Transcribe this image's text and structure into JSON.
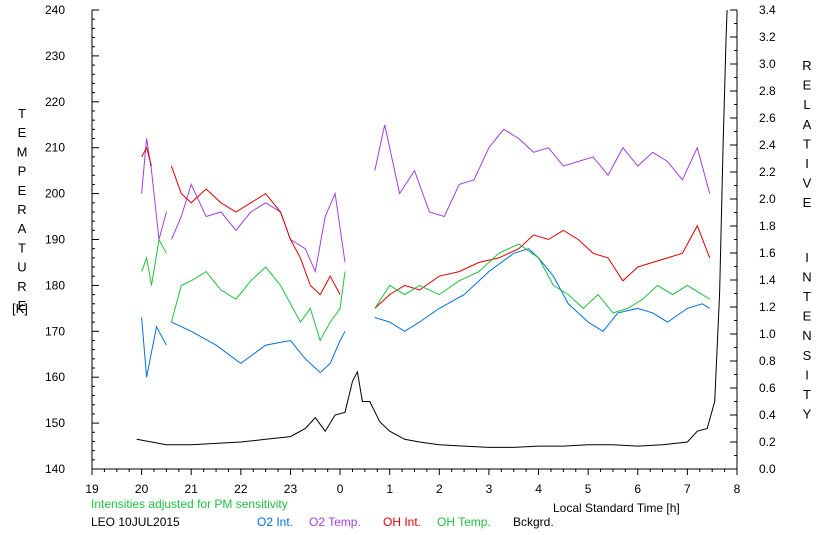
{
  "chart_data": {
    "type": "line",
    "left_axis_title": "TEMPERATURE",
    "left_axis_unit": "[K]",
    "right_axis_title": "RELATIVE INTENSITY",
    "xlabel": "Local Standard Time [h]",
    "note": "Intensities adjusted for PM sensitivity",
    "station_date": "LEO 10JUL2015",
    "x_range": [
      19,
      32
    ],
    "x_ticks": [
      "19",
      "20",
      "21",
      "22",
      "23",
      "0",
      "1",
      "2",
      "3",
      "4",
      "5",
      "6",
      "7",
      "8"
    ],
    "y_left_range": [
      140,
      240
    ],
    "y_left_ticks": [
      "140",
      "150",
      "160",
      "170",
      "180",
      "190",
      "200",
      "210",
      "220",
      "230",
      "240"
    ],
    "y_right_range": [
      0.0,
      3.4
    ],
    "y_right_ticks": [
      "0.0",
      "0.2",
      "0.4",
      "0.6",
      "0.8",
      "1.0",
      "1.2",
      "1.4",
      "1.6",
      "1.8",
      "2.0",
      "2.2",
      "2.4",
      "2.6",
      "2.8",
      "3.0",
      "3.2",
      "3.4"
    ],
    "series": [
      {
        "name": "O2 Int.",
        "color": "#0070e0",
        "axis": "left",
        "segments": [
          [
            [
              20.0,
              173
            ],
            [
              20.1,
              160
            ],
            [
              20.3,
              171
            ],
            [
              20.5,
              167
            ]
          ],
          [
            [
              20.6,
              172
            ],
            [
              21.0,
              170
            ],
            [
              21.5,
              167
            ],
            [
              22.0,
              163
            ],
            [
              22.5,
              167
            ],
            [
              23.0,
              168
            ],
            [
              23.3,
              164
            ],
            [
              23.6,
              161
            ],
            [
              23.8,
              163
            ],
            [
              24.0,
              168
            ],
            [
              24.1,
              170
            ]
          ],
          [
            [
              24.7,
              173
            ],
            [
              25.0,
              172
            ],
            [
              25.3,
              170
            ],
            [
              25.6,
              172
            ],
            [
              26.0,
              175
            ],
            [
              26.5,
              178
            ],
            [
              27.0,
              183
            ],
            [
              27.5,
              187
            ],
            [
              27.8,
              188
            ],
            [
              28.0,
              186
            ],
            [
              28.3,
              182
            ],
            [
              28.6,
              176
            ],
            [
              29.0,
              172
            ],
            [
              29.3,
              170
            ],
            [
              29.6,
              174
            ],
            [
              30.0,
              175
            ],
            [
              30.3,
              174
            ],
            [
              30.6,
              172
            ],
            [
              31.0,
              175
            ],
            [
              31.3,
              176
            ],
            [
              31.45,
              175
            ]
          ]
        ]
      },
      {
        "name": "O2 Temp.",
        "color": "#a040e0",
        "axis": "left",
        "segments": [
          [
            [
              20.0,
              200
            ],
            [
              20.1,
              212
            ],
            [
              20.2,
              205
            ],
            [
              20.35,
              190
            ],
            [
              20.5,
              196
            ]
          ],
          [
            [
              20.6,
              190
            ],
            [
              20.8,
              195
            ],
            [
              21.0,
              202
            ],
            [
              21.3,
              195
            ],
            [
              21.6,
              196
            ],
            [
              21.9,
              192
            ],
            [
              22.2,
              196
            ],
            [
              22.5,
              198
            ],
            [
              22.8,
              196
            ],
            [
              23.0,
              190
            ],
            [
              23.3,
              188
            ],
            [
              23.5,
              183
            ],
            [
              23.7,
              195
            ],
            [
              23.9,
              200
            ],
            [
              24.1,
              185
            ]
          ],
          [
            [
              24.7,
              205
            ],
            [
              24.9,
              215
            ],
            [
              25.2,
              200
            ],
            [
              25.5,
              205
            ],
            [
              25.8,
              196
            ],
            [
              26.1,
              195
            ],
            [
              26.4,
              202
            ],
            [
              26.7,
              203
            ],
            [
              27.0,
              210
            ],
            [
              27.3,
              214
            ],
            [
              27.6,
              212
            ],
            [
              27.9,
              209
            ],
            [
              28.2,
              210
            ],
            [
              28.5,
              206
            ],
            [
              28.8,
              207
            ],
            [
              29.1,
              208
            ],
            [
              29.4,
              204
            ],
            [
              29.7,
              210
            ],
            [
              30.0,
              206
            ],
            [
              30.3,
              209
            ],
            [
              30.6,
              207
            ],
            [
              30.9,
              203
            ],
            [
              31.2,
              210
            ],
            [
              31.45,
              200
            ]
          ]
        ]
      },
      {
        "name": "OH Int.",
        "color": "#e00000",
        "axis": "left",
        "segments": [
          [
            [
              20.0,
              208
            ],
            [
              20.1,
              210
            ],
            [
              20.2,
              206
            ]
          ],
          [
            [
              20.6,
              206
            ],
            [
              20.8,
              200
            ],
            [
              21.0,
              198
            ],
            [
              21.3,
              201
            ],
            [
              21.6,
              198
            ],
            [
              21.9,
              196
            ],
            [
              22.2,
              198
            ],
            [
              22.5,
              200
            ],
            [
              22.8,
              196
            ],
            [
              23.0,
              190
            ],
            [
              23.2,
              186
            ],
            [
              23.4,
              180
            ],
            [
              23.6,
              178
            ],
            [
              23.8,
              182
            ],
            [
              24.0,
              178
            ]
          ],
          [
            [
              24.7,
              175
            ],
            [
              25.0,
              178
            ],
            [
              25.3,
              180
            ],
            [
              25.6,
              179
            ],
            [
              26.0,
              182
            ],
            [
              26.4,
              183
            ],
            [
              26.8,
              185
            ],
            [
              27.2,
              186
            ],
            [
              27.6,
              188
            ],
            [
              27.9,
              191
            ],
            [
              28.2,
              190
            ],
            [
              28.5,
              192
            ],
            [
              28.8,
              190
            ],
            [
              29.1,
              187
            ],
            [
              29.4,
              186
            ],
            [
              29.7,
              181
            ],
            [
              30.0,
              184
            ],
            [
              30.3,
              185
            ],
            [
              30.6,
              186
            ],
            [
              30.9,
              187
            ],
            [
              31.2,
              193
            ],
            [
              31.45,
              186
            ]
          ]
        ]
      },
      {
        "name": "OH Temp.",
        "color": "#20c040",
        "axis": "left",
        "segments": [
          [
            [
              20.0,
              183
            ],
            [
              20.1,
              186
            ],
            [
              20.2,
              180
            ],
            [
              20.35,
              190
            ],
            [
              20.5,
              187
            ]
          ],
          [
            [
              20.6,
              172
            ],
            [
              20.8,
              180
            ],
            [
              21.0,
              181
            ],
            [
              21.3,
              183
            ],
            [
              21.6,
              179
            ],
            [
              21.9,
              177
            ],
            [
              22.2,
              181
            ],
            [
              22.5,
              184
            ],
            [
              22.8,
              180
            ],
            [
              23.0,
              176
            ],
            [
              23.2,
              172
            ],
            [
              23.4,
              175
            ],
            [
              23.6,
              168
            ],
            [
              23.8,
              172
            ],
            [
              24.0,
              175
            ],
            [
              24.1,
              183
            ]
          ],
          [
            [
              24.7,
              175
            ],
            [
              25.0,
              180
            ],
            [
              25.3,
              178
            ],
            [
              25.6,
              180
            ],
            [
              26.0,
              178
            ],
            [
              26.4,
              181
            ],
            [
              26.8,
              183
            ],
            [
              27.2,
              187
            ],
            [
              27.6,
              189
            ],
            [
              28.0,
              186
            ],
            [
              28.3,
              180
            ],
            [
              28.6,
              178
            ],
            [
              28.9,
              175
            ],
            [
              29.2,
              178
            ],
            [
              29.5,
              174
            ],
            [
              29.8,
              175
            ],
            [
              30.1,
              177
            ],
            [
              30.4,
              180
            ],
            [
              30.7,
              178
            ],
            [
              31.0,
              180
            ],
            [
              31.3,
              178
            ],
            [
              31.45,
              177
            ]
          ]
        ]
      },
      {
        "name": "Bckgrd.",
        "color": "#000000",
        "axis": "right",
        "segments": [
          [
            [
              19.9,
              0.22
            ],
            [
              20.5,
              0.18
            ],
            [
              21.0,
              0.18
            ],
            [
              21.5,
              0.19
            ],
            [
              22.0,
              0.2
            ],
            [
              22.5,
              0.22
            ],
            [
              23.0,
              0.24
            ],
            [
              23.3,
              0.3
            ],
            [
              23.5,
              0.38
            ],
            [
              23.7,
              0.28
            ],
            [
              23.9,
              0.4
            ],
            [
              24.1,
              0.42
            ],
            [
              24.25,
              0.65
            ],
            [
              24.35,
              0.72
            ],
            [
              24.45,
              0.5
            ],
            [
              24.6,
              0.5
            ],
            [
              24.8,
              0.35
            ],
            [
              25.0,
              0.28
            ],
            [
              25.3,
              0.22
            ],
            [
              25.6,
              0.2
            ],
            [
              26.0,
              0.18
            ],
            [
              26.5,
              0.17
            ],
            [
              27.0,
              0.16
            ],
            [
              27.5,
              0.16
            ],
            [
              28.0,
              0.17
            ],
            [
              28.5,
              0.17
            ],
            [
              29.0,
              0.18
            ],
            [
              29.5,
              0.18
            ],
            [
              30.0,
              0.17
            ],
            [
              30.5,
              0.18
            ],
            [
              31.0,
              0.2
            ],
            [
              31.2,
              0.28
            ],
            [
              31.4,
              0.3
            ],
            [
              31.55,
              0.5
            ],
            [
              31.65,
              1.3
            ],
            [
              31.72,
              2.4
            ],
            [
              31.78,
              3.2
            ],
            [
              31.8,
              3.4
            ]
          ]
        ]
      }
    ]
  }
}
